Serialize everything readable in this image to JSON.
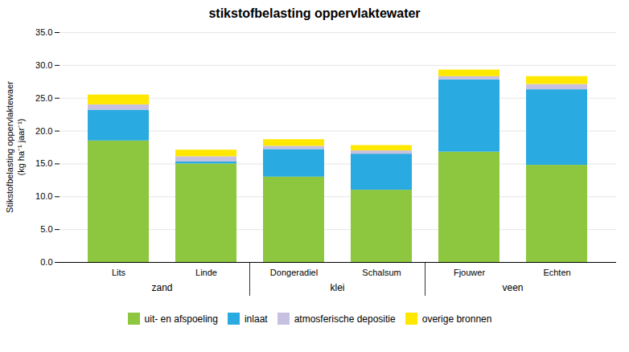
{
  "chart_data": {
    "type": "bar",
    "stacked": true,
    "title": "stikstofbelasting oppervlaktewater",
    "ylabel": "Stikstofbelasting oppervlaktewaer\n(kg ha⁻¹ jaar⁻¹)",
    "categories": [
      "Lits",
      "Linde",
      "Dongeradiel",
      "Schalsum",
      "Fjouwer",
      "Echten"
    ],
    "groups": [
      {
        "label": "zand",
        "categories": [
          "Lits",
          "Linde"
        ]
      },
      {
        "label": "klei",
        "categories": [
          "Dongeradiel",
          "Schalsum"
        ]
      },
      {
        "label": "veen",
        "categories": [
          "Fjouwer",
          "Echten"
        ]
      }
    ],
    "series": [
      {
        "name": "uit- en afspoeling",
        "color": "#8DC63F",
        "values": [
          18.5,
          15.0,
          13.0,
          11.0,
          16.8,
          14.8
        ]
      },
      {
        "name": "inlaat",
        "color": "#29ABE2",
        "values": [
          4.7,
          0.3,
          4.2,
          5.5,
          11.0,
          11.5
        ]
      },
      {
        "name": "atmosferische depositie",
        "color": "#C8C0E0",
        "values": [
          0.8,
          0.8,
          0.5,
          0.5,
          0.5,
          0.8
        ]
      },
      {
        "name": "overige bronnen",
        "color": "#FFE800",
        "values": [
          1.5,
          1.0,
          1.0,
          0.8,
          1.0,
          1.2
        ]
      }
    ],
    "ylim": [
      0,
      35
    ],
    "yticks": [
      {
        "value": 0,
        "label": "0.0"
      },
      {
        "value": 5,
        "label": "5.0"
      },
      {
        "value": 10,
        "label": "10.0"
      },
      {
        "value": 15,
        "label": "15.0"
      },
      {
        "value": 20,
        "label": "20.0"
      },
      {
        "value": 25,
        "label": "25.0"
      },
      {
        "value": 30,
        "label": "30.0"
      },
      {
        "value": 35,
        "label": "35.0"
      }
    ],
    "grid": true,
    "legend": "bottom"
  }
}
